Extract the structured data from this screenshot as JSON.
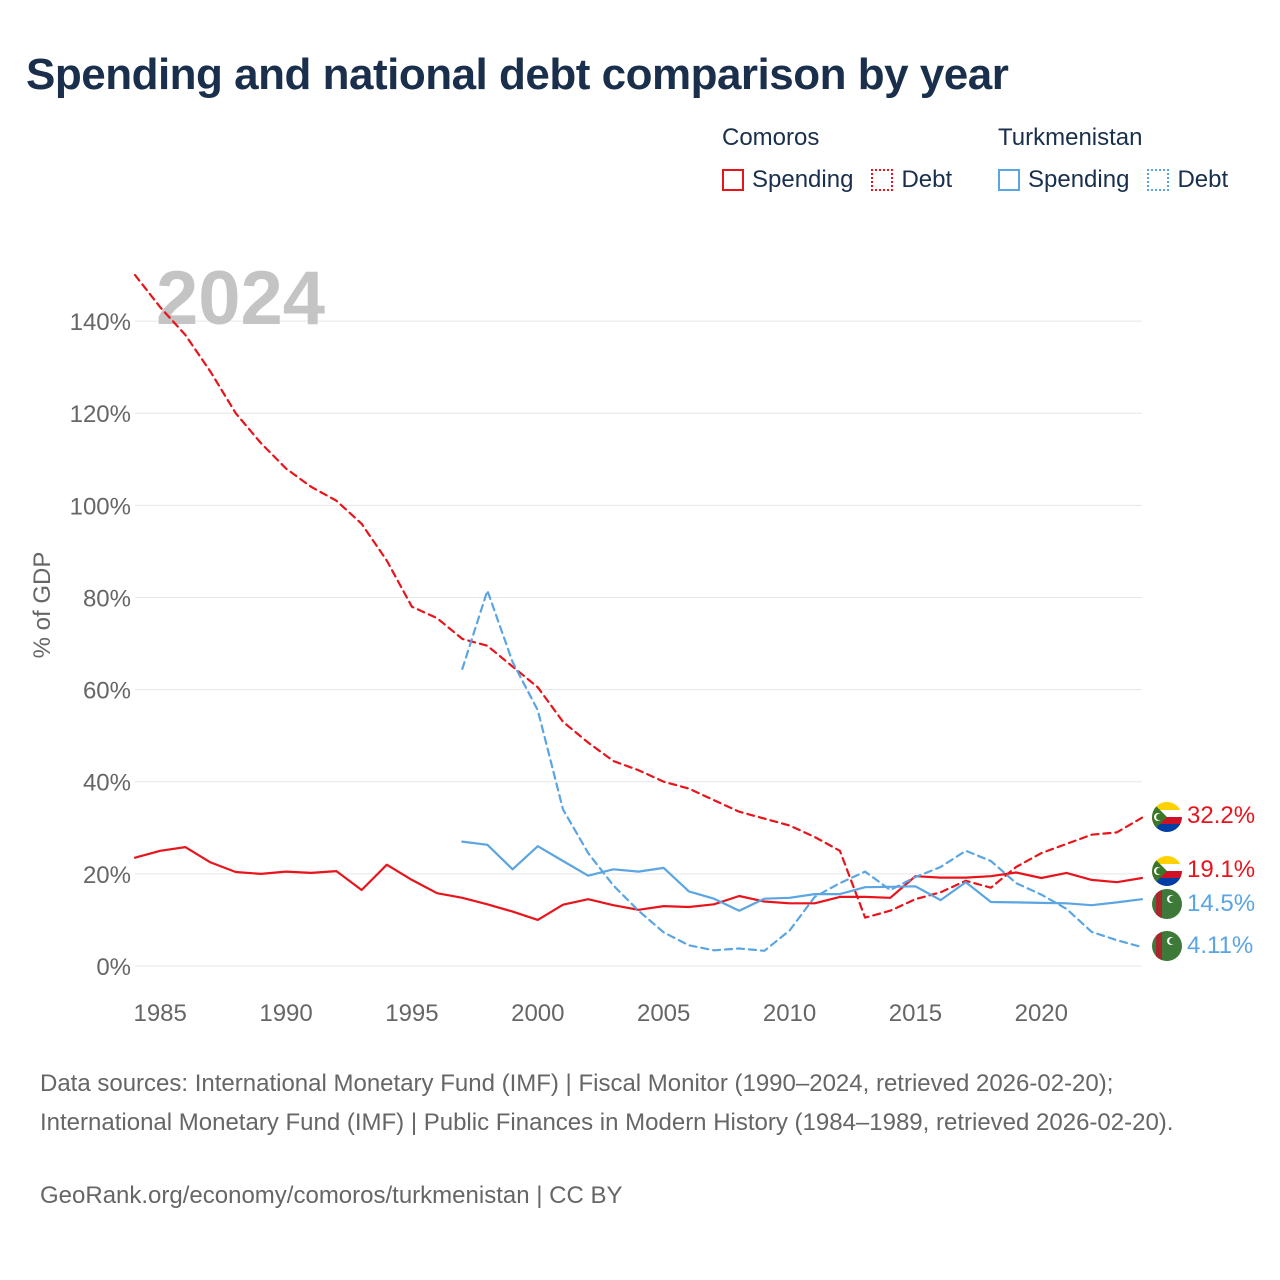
{
  "title": "Spending and national debt comparison by year",
  "legend": {
    "groups": [
      {
        "name": "Comoros",
        "color": "#e8141b",
        "spending_label": "Spending",
        "debt_label": "Debt"
      },
      {
        "name": "Turkmenistan",
        "color": "#5aa5e2",
        "spending_label": "Spending",
        "debt_label": "Debt"
      }
    ]
  },
  "year_watermark": "2024",
  "sources": "Data sources: International Monetary Fund (IMF) | Fiscal Monitor (1990–2024, retrieved 2026-02-20); International Monetary Fund (IMF) | Public Finances in Modern History (1984–1989, retrieved 2026-02-20).",
  "credit": "GeoRank.org/economy/comoros/turkmenistan | CC BY",
  "chart_data": {
    "type": "line",
    "title": "Spending and national debt comparison by year",
    "xlabel": "",
    "ylabel": "% of GDP",
    "xlim": [
      1984,
      2024
    ],
    "ylim": [
      0,
      150
    ],
    "x_ticks": [
      1985,
      1990,
      1995,
      2000,
      2005,
      2010,
      2015,
      2020
    ],
    "y_ticks": [
      0,
      20,
      40,
      60,
      80,
      100,
      120,
      140
    ],
    "y_tick_labels": [
      "0%",
      "20%",
      "40%",
      "60%",
      "80%",
      "100%",
      "120%",
      "140%"
    ],
    "grid": true,
    "series": [
      {
        "name": "Comoros Debt",
        "country": "Comoros",
        "metric": "Debt",
        "color": "#e8141b",
        "dashed": true,
        "end_label": "32.2%",
        "x": [
          1984,
          1985,
          1986,
          1987,
          1988,
          1989,
          1990,
          1991,
          1992,
          1993,
          1994,
          1995,
          1996,
          1997,
          1998,
          1999,
          2000,
          2001,
          2002,
          2003,
          2004,
          2005,
          2006,
          2007,
          2008,
          2009,
          2010,
          2011,
          2012,
          2013,
          2014,
          2015,
          2016,
          2017,
          2018,
          2019,
          2020,
          2021,
          2022,
          2023,
          2024
        ],
        "values": [
          150,
          143,
          137,
          129,
          120,
          113.5,
          108,
          104,
          101,
          96,
          88,
          78,
          75.5,
          71,
          69.5,
          65,
          60.5,
          53,
          48.5,
          44.5,
          42.5,
          40,
          38.5,
          36,
          33.5,
          32,
          30.5,
          28,
          25,
          10.5,
          12,
          14.5,
          16,
          18.5,
          17,
          21.5,
          24.5,
          26.5,
          28.5,
          29,
          32.2
        ]
      },
      {
        "name": "Comoros Spending",
        "country": "Comoros",
        "metric": "Spending",
        "color": "#e8141b",
        "dashed": false,
        "end_label": "19.1%",
        "x": [
          1984,
          1985,
          1986,
          1987,
          1988,
          1989,
          1990,
          1991,
          1992,
          1993,
          1994,
          1995,
          1996,
          1997,
          1998,
          1999,
          2000,
          2001,
          2002,
          2003,
          2004,
          2005,
          2006,
          2007,
          2008,
          2009,
          2010,
          2011,
          2012,
          2013,
          2014,
          2015,
          2016,
          2017,
          2018,
          2019,
          2020,
          2021,
          2022,
          2023,
          2024
        ],
        "values": [
          23.5,
          25,
          25.8,
          22.5,
          20.4,
          20,
          20.5,
          20.2,
          20.6,
          16.5,
          22,
          18.7,
          15.8,
          14.8,
          13.4,
          11.8,
          10,
          13.3,
          14.5,
          13.2,
          12.2,
          13,
          12.8,
          13.4,
          15.2,
          14,
          13.6,
          13.6,
          15,
          15,
          14.8,
          19.5,
          19.2,
          19.2,
          19.5,
          20.3,
          19.1,
          20.2,
          18.7,
          18.2,
          19.1
        ]
      },
      {
        "name": "Turkmenistan Spending",
        "country": "Turkmenistan",
        "metric": "Spending",
        "color": "#5aa5e2",
        "dashed": false,
        "end_label": "14.5%",
        "x": [
          1997,
          1998,
          1999,
          2000,
          2001,
          2002,
          2003,
          2004,
          2005,
          2006,
          2007,
          2008,
          2009,
          2010,
          2011,
          2012,
          2013,
          2014,
          2015,
          2016,
          2017,
          2018,
          2019,
          2020,
          2021,
          2022,
          2023,
          2024
        ],
        "values": [
          27,
          26.3,
          21,
          26,
          22.8,
          19.6,
          21,
          20.5,
          21.3,
          16.2,
          14.6,
          12,
          14.6,
          14.8,
          15.6,
          15.6,
          17.1,
          17.2,
          17.3,
          14.3,
          18.2,
          13.9,
          13.8,
          13.7,
          13.6,
          13.2,
          13.8,
          14.5
        ]
      },
      {
        "name": "Turkmenistan Debt",
        "country": "Turkmenistan",
        "metric": "Debt",
        "color": "#5aa5e2",
        "dashed": true,
        "end_label": "4.11%",
        "x": [
          1997,
          1998,
          1999,
          2000,
          2001,
          2002,
          2003,
          2004,
          2005,
          2006,
          2007,
          2008,
          2009,
          2010,
          2011,
          2012,
          2013,
          2014,
          2015,
          2016,
          2017,
          2018,
          2019,
          2020,
          2021,
          2022,
          2023,
          2024
        ],
        "values": [
          64.5,
          81.5,
          66,
          55.5,
          34,
          24.5,
          17.5,
          12,
          7.3,
          4.5,
          3.4,
          3.8,
          3.3,
          7.7,
          15,
          18,
          20.5,
          16.5,
          19.3,
          21.5,
          25,
          22.8,
          18,
          15.5,
          12.4,
          7.4,
          5.6,
          4.11
        ]
      }
    ]
  }
}
